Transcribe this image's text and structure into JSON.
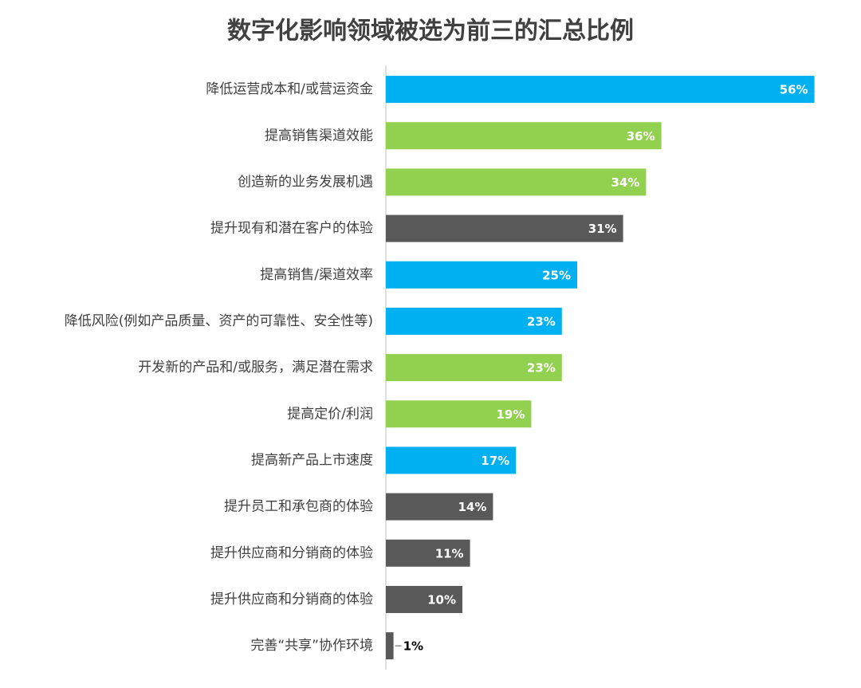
{
  "chart_data": {
    "type": "bar",
    "orientation": "horizontal",
    "title": "数字化影响领域被选为前三的汇总比例",
    "categories": [
      "降低运营成本和/或营运资金",
      "提高销售渠道效能",
      "创造新的业务发展机遇",
      "提升现有和潜在客户的体验",
      "提高销售/渠道效率",
      "降低风险(例如产品质量、资产的可靠性、安全性等)",
      "开发新的产品和/或服务，满足潜在需求",
      "提高定价/利润",
      "提高新产品上市速度",
      "提升员工和承包商的体验",
      "提升供应商和分销商的体验",
      "提升供应商和分销商的体验",
      "完善“共享”协作环境"
    ],
    "values": [
      56,
      36,
      34,
      31,
      25,
      23,
      23,
      19,
      17,
      14,
      11,
      10,
      1
    ],
    "value_labels": [
      "56%",
      "36%",
      "34%",
      "31%",
      "25%",
      "23%",
      "23%",
      "19%",
      "17%",
      "14%",
      "11%",
      "10%",
      "1%"
    ],
    "colors": [
      "#00b0f0",
      "#92d050",
      "#92d050",
      "#595959",
      "#00b0f0",
      "#00b0f0",
      "#92d050",
      "#92d050",
      "#00b0f0",
      "#595959",
      "#595959",
      "#595959",
      "#595959"
    ]
  }
}
